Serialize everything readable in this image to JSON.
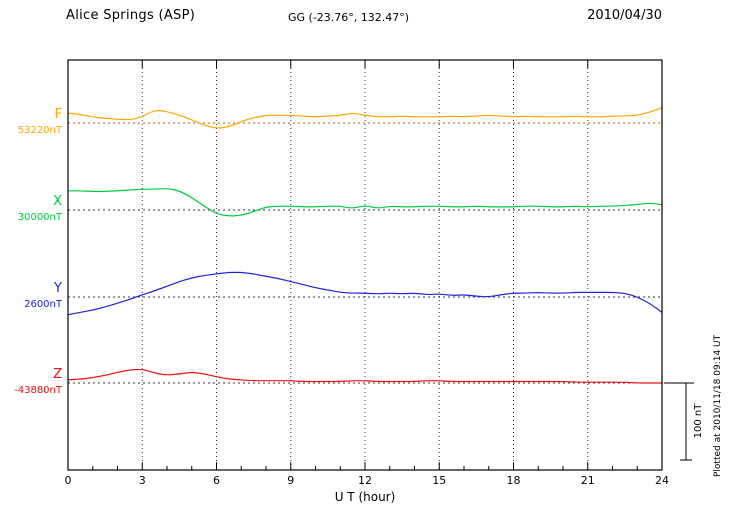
{
  "header": {
    "station": "Alice Springs (ASP)",
    "coords": "GG (-23.76°, 132.47°)",
    "date": "2010/04/30"
  },
  "footer": {
    "xlabel": "U T (hour)"
  },
  "side": {
    "plotted_at": "Plotted at 2010/11/18 09:14 UT"
  },
  "scale_bar": {
    "label": "100 nT",
    "nT": 100
  },
  "chart_data": {
    "type": "line",
    "title": "Alice Springs (ASP) magnetogram 2010/04/30",
    "xlabel": "U T (hour)",
    "x_range": [
      0,
      24
    ],
    "x_ticks": [
      "0",
      "3",
      "6",
      "9",
      "12",
      "15",
      "18",
      "21",
      "24"
    ],
    "x_tick_hours": [
      0,
      3,
      6,
      9,
      12,
      15,
      18,
      21,
      24
    ],
    "x_step_hours": 0.5,
    "grid": "dotted vertical lines every 3 hours, dotted horizontal baseline per component",
    "units": "nT offset from each component baseline",
    "series": [
      {
        "name": "F",
        "baseline_label": "53220nT",
        "color": "#ffa800",
        "baseline_color": "#cc5500",
        "values": [
          13,
          11,
          8,
          6,
          5,
          4,
          8,
          17,
          15,
          10,
          4,
          -3,
          -7,
          -5,
          2,
          7,
          10,
          10,
          10,
          9,
          8,
          9,
          10,
          13,
          10,
          8,
          8,
          9,
          8,
          8,
          8,
          9,
          8,
          9,
          10,
          9,
          8,
          9,
          8,
          8,
          8,
          9,
          8,
          8,
          9,
          9,
          10,
          14,
          20
        ]
      },
      {
        "name": "X",
        "baseline_label": "30000nT",
        "color": "#00cc44",
        "baseline_color": "#333333",
        "values": [
          25,
          25,
          24,
          24,
          25,
          26,
          27,
          27,
          28,
          25,
          16,
          5,
          -5,
          -8,
          -7,
          -2,
          4,
          5,
          5,
          4,
          4,
          5,
          5,
          2,
          6,
          2,
          5,
          4,
          4,
          5,
          5,
          4,
          4,
          5,
          4,
          4,
          4,
          5,
          5,
          4,
          4,
          5,
          4,
          5,
          5,
          6,
          7,
          9,
          7
        ]
      },
      {
        "name": "Y",
        "baseline_label": "2600nT",
        "color": "#2222dd",
        "baseline_color": "#333333",
        "values": [
          -23,
          -20,
          -17,
          -13,
          -8,
          -3,
          3,
          8,
          14,
          20,
          25,
          28,
          30,
          32,
          32,
          30,
          27,
          24,
          20,
          16,
          12,
          9,
          6,
          5,
          5,
          4,
          5,
          4,
          5,
          3,
          4,
          2,
          3,
          1,
          0,
          3,
          5,
          5,
          6,
          5,
          5,
          6,
          6,
          6,
          6,
          5,
          0,
          -8,
          -20
        ]
      },
      {
        "name": "Z",
        "baseline_label": "-43880nT",
        "color": "#ee1111",
        "baseline_color": "#333333",
        "values": [
          4,
          5,
          7,
          10,
          14,
          17,
          18,
          13,
          10,
          12,
          14,
          12,
          8,
          5,
          4,
          3,
          3,
          3,
          3,
          2,
          2,
          2,
          2,
          3,
          3,
          2,
          2,
          2,
          2,
          3,
          3,
          2,
          2,
          2,
          2,
          2,
          2,
          2,
          2,
          2,
          2,
          1,
          1,
          1,
          1,
          1,
          0,
          0,
          0
        ]
      }
    ]
  }
}
